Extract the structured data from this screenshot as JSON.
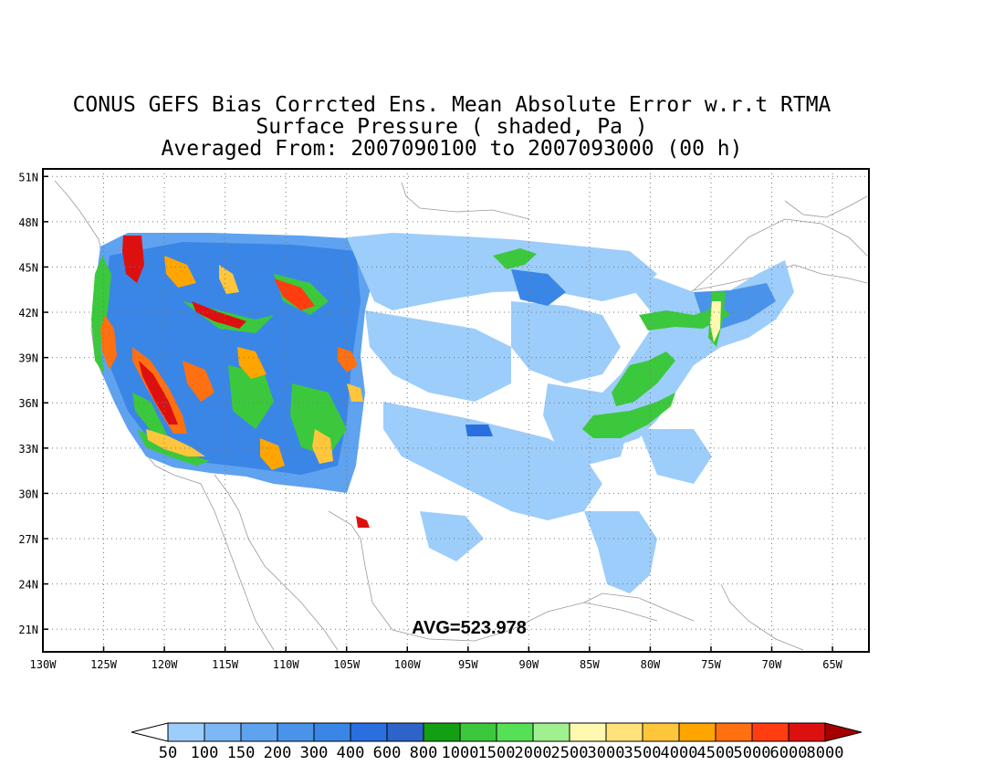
{
  "title": {
    "line1": "CONUS GEFS Bias Corrcted Ens. Mean Absolute Error w.r.t RTMA",
    "line2": "Surface Pressure ( shaded, Pa )",
    "line3": "Averaged From: 2007090100 to 2007093000 (00 h)"
  },
  "map": {
    "lon_range": [
      -130,
      -62
    ],
    "lat_range": [
      19.5,
      51.5
    ],
    "lon_ticks": [
      "130W",
      "125W",
      "120W",
      "115W",
      "110W",
      "105W",
      "100W",
      "95W",
      "90W",
      "85W",
      "80W",
      "75W",
      "70W",
      "65W"
    ],
    "lat_ticks": [
      "51N",
      "48N",
      "45N",
      "42N",
      "39N",
      "36N",
      "33N",
      "30N",
      "27N",
      "24N",
      "21N"
    ],
    "grid": true,
    "average_label": "AVG=523.978"
  },
  "colorbar": {
    "labels": [
      "50",
      "100",
      "150",
      "200",
      "300",
      "400",
      "600",
      "800",
      "1000",
      "1500",
      "2000",
      "2500",
      "3000",
      "3500",
      "4000",
      "4500",
      "5000",
      "6000",
      "8000"
    ],
    "colors": [
      "#ffffff",
      "#9dcdfa",
      "#7db7f5",
      "#5fa2ef",
      "#4a93ea",
      "#3a86e6",
      "#2a6fe0",
      "#2f63c9",
      "#12a012",
      "#3cc83c",
      "#55e055",
      "#a0f090",
      "#fff8b0",
      "#ffe27a",
      "#ffc63c",
      "#ffa500",
      "#ff7010",
      "#ff3d10",
      "#dd1010",
      "#a50000"
    ]
  }
}
